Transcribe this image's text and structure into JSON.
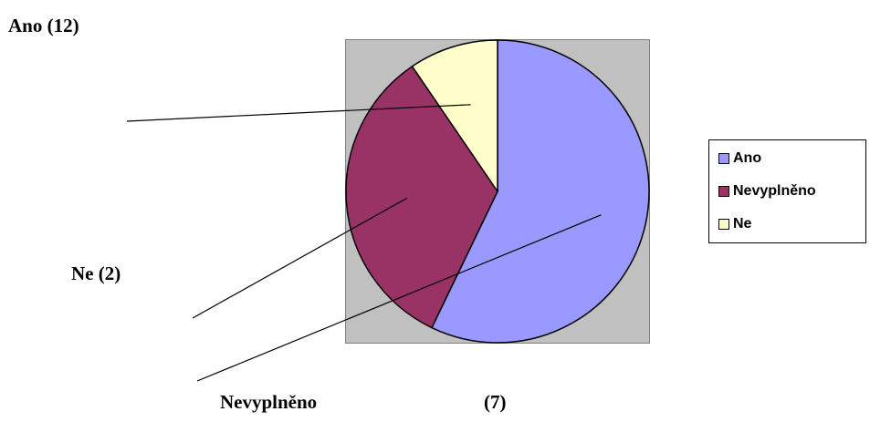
{
  "chart_data": {
    "type": "pie",
    "categories": [
      "Ano",
      "Nevyplněno",
      "Ne"
    ],
    "values": [
      12,
      7,
      2
    ],
    "colors": [
      "#9999ff",
      "#993366",
      "#ffffcc"
    ],
    "plot_area_color": "#c0c0c0",
    "legend_position": "right",
    "data_labels": {
      "ano": "Ano (12)",
      "ne": "Ne (2)",
      "nevyplneno_name": "Nevyplněno",
      "nevyplneno_value": "(7)"
    }
  }
}
